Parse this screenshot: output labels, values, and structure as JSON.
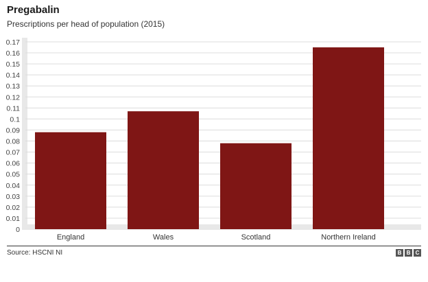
{
  "chart_data": {
    "type": "bar",
    "title": "Pregabalin",
    "subtitle": "Prescriptions per head of population (2015)",
    "categories": [
      "England",
      "Wales",
      "Scotland",
      "Northern Ireland"
    ],
    "values": [
      0.088,
      0.107,
      0.078,
      0.165
    ],
    "ylim": [
      0,
      0.17
    ],
    "yticks": [
      "0",
      "0.01",
      "0.02",
      "0.03",
      "0.04",
      "0.05",
      "0.06",
      "0.07",
      "0.08",
      "0.09",
      "0.1",
      "0.11",
      "0.12",
      "0.13",
      "0.14",
      "0.15",
      "0.16",
      "0.17"
    ],
    "grid": true,
    "bar_color": "#7f1615"
  },
  "footer": {
    "source": "Source: HSCNI NI",
    "logo_letters": [
      "B",
      "B",
      "C"
    ]
  }
}
